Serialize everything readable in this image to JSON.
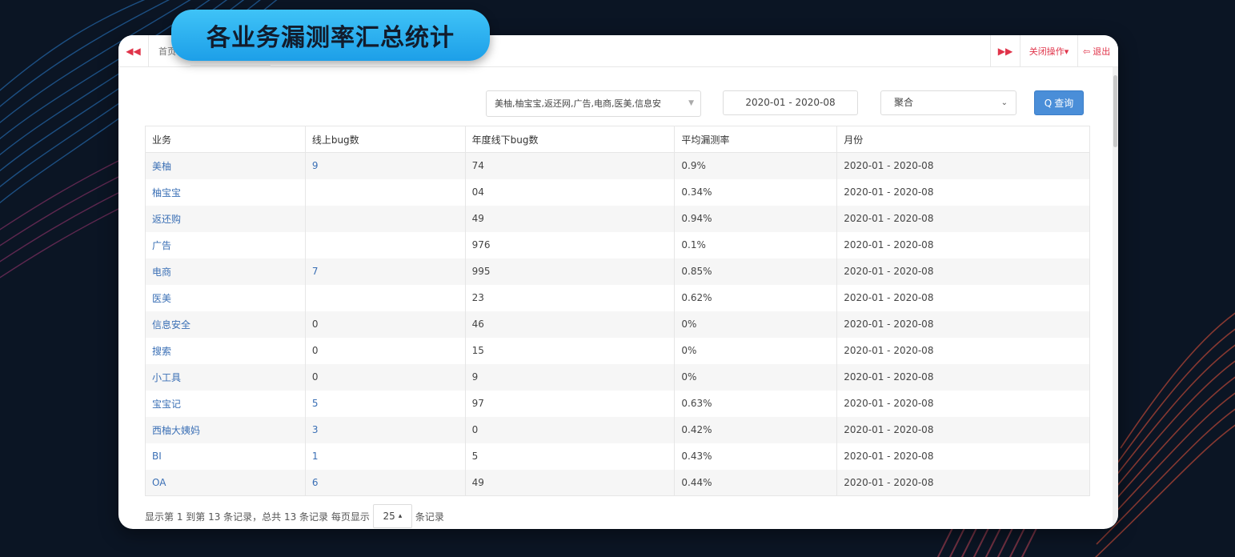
{
  "banner": {
    "title": "各业务漏测率汇总统计"
  },
  "topbar": {
    "prev_icon": "◀◀",
    "home_tab": "首页",
    "next_icon": "▶▶",
    "close_ops": "关闭操作",
    "close_caret": "▾",
    "exit_icon": "⇦",
    "exit": "退出"
  },
  "filters": {
    "business": "美柚,柚宝宝,返还网,广告,电商,医美,信息安",
    "date_range": "2020-01 - 2020-08",
    "aggregation": "聚合",
    "query_icon": "Q",
    "query": "查询"
  },
  "table": {
    "headers": [
      "业务",
      "线上bug数",
      "年度线下bug数",
      "平均漏测率",
      "月份"
    ],
    "rows": [
      {
        "biz": "美柚",
        "online": "9",
        "offline": "74",
        "rate": "0.9%",
        "month": "2020-01 - 2020-08"
      },
      {
        "biz": "柚宝宝",
        "online": "",
        "offline": "04",
        "rate": "0.34%",
        "month": "2020-01 - 2020-08"
      },
      {
        "biz": "返还购",
        "online": "",
        "offline": "49",
        "rate": "0.94%",
        "month": "2020-01 - 2020-08"
      },
      {
        "biz": "广告",
        "online": "",
        "offline": "976",
        "rate": "0.1%",
        "month": "2020-01 - 2020-08"
      },
      {
        "biz": "电商",
        "online": "7",
        "offline": "995",
        "rate": "0.85%",
        "month": "2020-01 - 2020-08"
      },
      {
        "biz": "医美",
        "online": "",
        "offline": "23",
        "rate": "0.62%",
        "month": "2020-01 - 2020-08"
      },
      {
        "biz": "信息安全",
        "online": "0",
        "offline": "46",
        "rate": "0%",
        "month": "2020-01 - 2020-08"
      },
      {
        "biz": "搜索",
        "online": "0",
        "offline": "15",
        "rate": "0%",
        "month": "2020-01 - 2020-08"
      },
      {
        "biz": "小工具",
        "online": "0",
        "offline": "9",
        "rate": "0%",
        "month": "2020-01 - 2020-08"
      },
      {
        "biz": "宝宝记",
        "online": "5",
        "offline": "97",
        "rate": "0.63%",
        "month": "2020-01 - 2020-08"
      },
      {
        "biz": "西柚大姨妈",
        "online": "3",
        "offline": "0",
        "rate": "0.42%",
        "month": "2020-01 - 2020-08"
      },
      {
        "biz": "BI",
        "online": "1",
        "offline": "5",
        "rate": "0.43%",
        "month": "2020-01 - 2020-08"
      },
      {
        "biz": "OA",
        "online": "6",
        "offline": "49",
        "rate": "0.44%",
        "month": "2020-01 - 2020-08"
      }
    ]
  },
  "footer": {
    "prefix": "显示第 1 到第 13 条记录，总共 13 条记录 每页显示",
    "page_size": "25",
    "page_size_caret": "▴",
    "suffix": "条记录"
  },
  "colors": {
    "background": "#0b1524",
    "accent": "#1d9fe8",
    "link": "#3a6fb5",
    "danger": "#e0344a",
    "button": "#4a8ed8"
  }
}
